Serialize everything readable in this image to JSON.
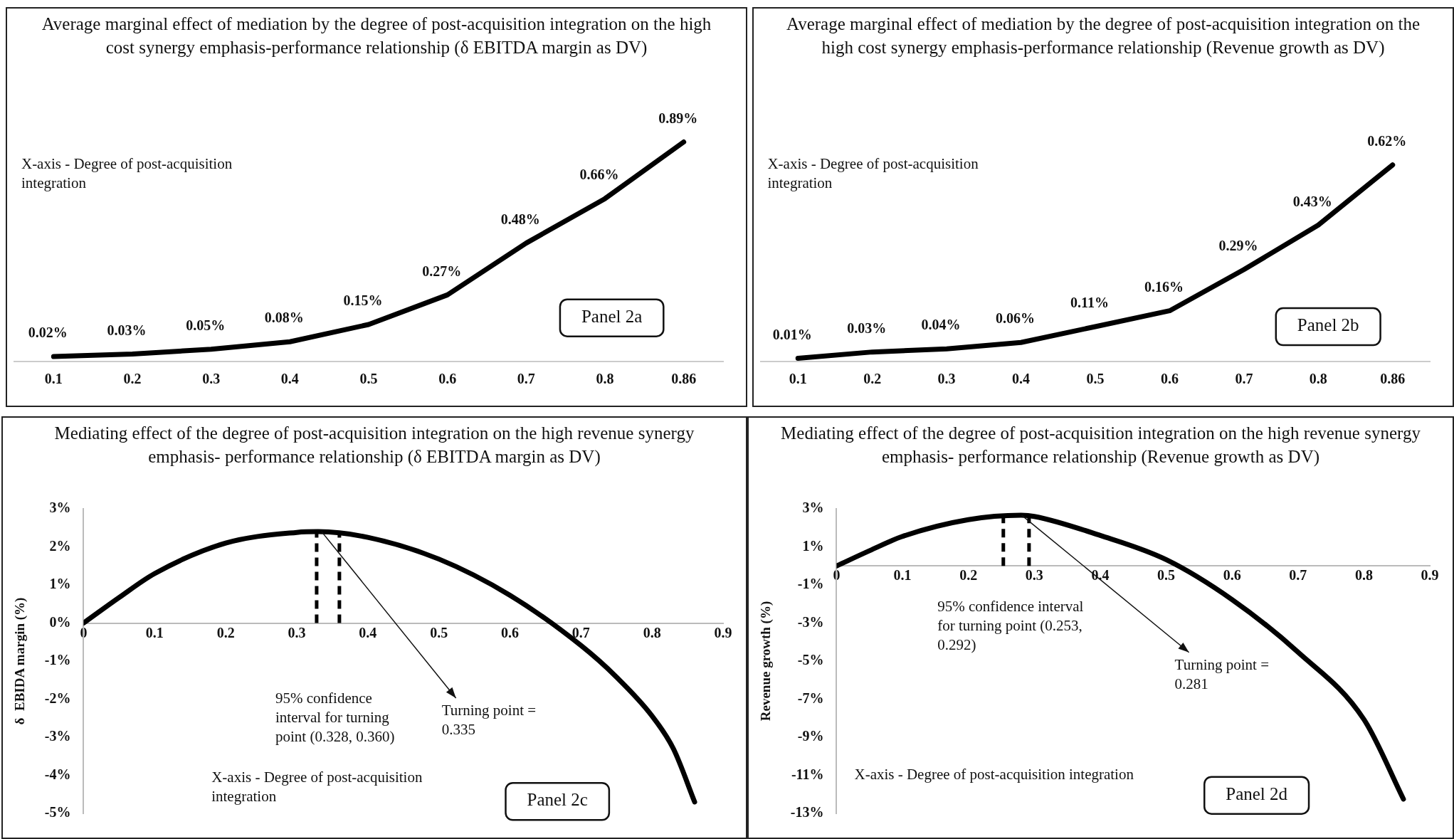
{
  "chart_data": [
    {
      "type": "line",
      "title": "Average marginal effect of mediation by the degree of post-acquisition integration on the high cost synergy emphasis-performance relationship (δ EBITDA margin as DV)",
      "xlabel": "X-axis - Degree of post-acquisition integration",
      "categories": [
        "0.1",
        "0.2",
        "0.3",
        "0.4",
        "0.5",
        "0.6",
        "0.7",
        "0.8",
        "0.86"
      ],
      "values": [
        0.02,
        0.03,
        0.05,
        0.08,
        0.15,
        0.27,
        0.48,
        0.66,
        0.89
      ],
      "value_labels": [
        "0.02%",
        "0.03%",
        "0.05%",
        "0.08%",
        "0.15%",
        "0.27%",
        "0.48%",
        "0.66%",
        "0.89%"
      ],
      "color": "#000000",
      "marker": "none",
      "legend": false,
      "grid": false,
      "tick_labels": "x",
      "annotations": [
        "Panel 2a"
      ]
    },
    {
      "type": "line",
      "title": "Average marginal effect of mediation by the degree of post-acquisition integration on the high cost synergy emphasis-performance relationship (Revenue growth as DV)",
      "xlabel": "X-axis - Degree of post-acquisition integration",
      "categories": [
        "0.1",
        "0.2",
        "0.3",
        "0.4",
        "0.5",
        "0.6",
        "0.7",
        "0.8",
        "0.86"
      ],
      "values": [
        0.01,
        0.03,
        0.04,
        0.06,
        0.11,
        0.16,
        0.29,
        0.43,
        0.62
      ],
      "value_labels": [
        "0.01%",
        "0.03%",
        "0.04%",
        "0.06%",
        "0.11%",
        "0.16%",
        "0.29%",
        "0.43%",
        "0.62%"
      ],
      "color": "#000000",
      "marker": "none",
      "legend": false,
      "grid": false,
      "tick_labels": "x",
      "annotations": [
        "Panel 2b"
      ]
    },
    {
      "type": "line",
      "title": "Mediating effect of the degree of post-acquisition integration on the high revenue synergy emphasis- performance relationship (δ EBITDA margin as DV)",
      "xlabel": "X-axis - Degree of post-acquisition integration",
      "ylabel": "δ  EBIDA margin (%)",
      "x": [
        0,
        0.05,
        0.1,
        0.2,
        0.3,
        0.33,
        0.4,
        0.5,
        0.6,
        0.7,
        0.75,
        0.8,
        0.83,
        0.86
      ],
      "values": [
        0,
        0.67,
        1.3,
        2.1,
        2.38,
        2.4,
        2.25,
        1.68,
        0.73,
        -0.59,
        -1.42,
        -2.44,
        -3.3,
        -4.7
      ],
      "color": "#000000",
      "marker": "none",
      "legend": false,
      "grid": false,
      "xlim": [
        0,
        0.9
      ],
      "xticks": [
        0,
        0.1,
        0.2,
        0.3,
        0.4,
        0.5,
        0.6,
        0.7,
        0.8,
        0.9
      ],
      "ylim": [
        -5,
        3
      ],
      "yticks": [
        {
          "value": 3,
          "label": "3%"
        },
        {
          "value": 2,
          "label": "2%"
        },
        {
          "value": 1,
          "label": "1%"
        },
        {
          "value": 0,
          "label": "0%"
        },
        {
          "value": -1,
          "label": "-1%"
        },
        {
          "value": -2,
          "label": "-2%"
        },
        {
          "value": -3,
          "label": "-3%"
        },
        {
          "value": -4,
          "label": "-4%"
        },
        {
          "value": -5,
          "label": "-5%"
        }
      ],
      "ref_lines": [
        {
          "axis": "x",
          "value": 0.328,
          "line_style": "dashed"
        },
        {
          "axis": "x",
          "value": 0.36,
          "line_style": "dashed"
        }
      ],
      "annotations": [
        "95% confidence interval for turning point (0.328, 0.360)",
        {
          "text": "Turning point = 0.335",
          "x": 0.335,
          "y": 2.4
        },
        "Panel 2c"
      ]
    },
    {
      "type": "line",
      "title": "Mediating effect of the degree of post-acquisition integration on the high revenue synergy emphasis- performance relationship (Revenue growth as DV)",
      "xlabel": "X-axis - Degree of post-acquisition integration",
      "ylabel": "Revenue growth (%)",
      "x": [
        0,
        0.05,
        0.1,
        0.2,
        0.28,
        0.3,
        0.4,
        0.5,
        0.6,
        0.7,
        0.8,
        0.86
      ],
      "values": [
        0,
        0.8,
        1.55,
        2.43,
        2.66,
        2.6,
        1.6,
        0.33,
        -1.77,
        -4.53,
        -8.06,
        -12.25
      ],
      "color": "#000000",
      "marker": "none",
      "legend": false,
      "grid": false,
      "xlim": [
        0,
        0.9
      ],
      "xticks": [
        0,
        0.1,
        0.2,
        0.3,
        0.4,
        0.5,
        0.6,
        0.7,
        0.8,
        0.9
      ],
      "ylim": [
        -13,
        3
      ],
      "yticks": [
        {
          "value": 3,
          "label": "3%"
        },
        {
          "value": 1,
          "label": "1%"
        },
        {
          "value": -1,
          "label": "-1%"
        },
        {
          "value": -3,
          "label": "-3%"
        },
        {
          "value": -5,
          "label": "-5%"
        },
        {
          "value": -7,
          "label": "-7%"
        },
        {
          "value": -9,
          "label": "-9%"
        },
        {
          "value": -11,
          "label": "-11%"
        },
        {
          "value": -13,
          "label": "-13%"
        }
      ],
      "ref_lines": [
        {
          "axis": "x",
          "value": 0.253,
          "line_style": "dashed"
        },
        {
          "axis": "x",
          "value": 0.292,
          "line_style": "dashed"
        }
      ],
      "annotations": [
        "95% confidence interval for turning point (0.253, 0.292)",
        {
          "text": "Turning point = 0.281",
          "x": 0.281,
          "y": 2.66
        },
        "Panel 2d"
      ]
    }
  ]
}
